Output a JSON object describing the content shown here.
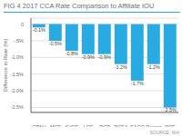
{
  "chart_data": {
    "type": "bar",
    "title": "FIG 4 2017 CCA Rate Comparison to Affiliate IOU",
    "ylabel": "Difference in Rate (%)",
    "categories": [
      "CPAU",
      "MCE",
      "SVCE",
      "LCE",
      "RCP",
      "RCEA",
      "EACO",
      "Penina",
      "PCE"
    ],
    "values": [
      -0.1,
      -0.5,
      -0.8,
      -0.9,
      -0.9,
      -1.2,
      -1.7,
      -1.2,
      -2.5
    ],
    "value_labels": [
      "-0.1%",
      "-0.5%",
      "-0.8%",
      "-0.9%",
      "-0.9%",
      "-1.2%",
      "-1.7%",
      "-1.2%",
      "-2.5%"
    ],
    "data_labels": true,
    "color": "#29ABE2",
    "ylim": [
      -2.65,
      0.18
    ],
    "yticks": [
      0,
      {
        "value": -0.5,
        "label": "-.5%"
      },
      {
        "value": -1.0,
        "label": "-1.0%"
      },
      {
        "value": -1.5,
        "label": "-1.5%"
      },
      {
        "value": -2.0,
        "label": "-2.0%"
      },
      {
        "value": -2.5,
        "label": "-2.5%"
      }
    ],
    "grid": true,
    "annotations": [
      "SOURCE: N/A"
    ]
  }
}
